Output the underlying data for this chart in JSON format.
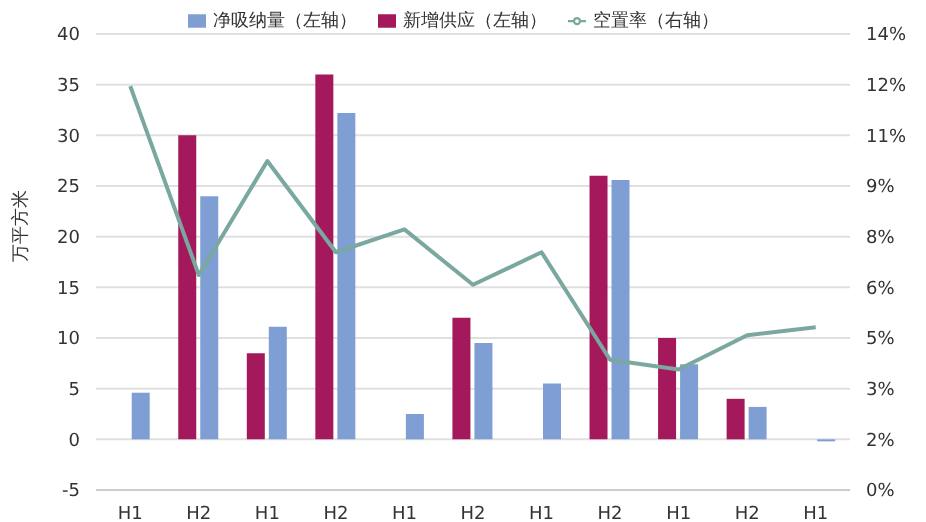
{
  "chart_data": {
    "type": "bar",
    "categories": [
      "H1",
      "H2",
      "H1",
      "H2",
      "H1",
      "H2",
      "H1",
      "H2",
      "H1",
      "H2",
      "H1"
    ],
    "ylabel": "万平方米",
    "ylim": [
      -5,
      40
    ],
    "yticks": [
      -5,
      0,
      5,
      10,
      15,
      20,
      25,
      30,
      35,
      40
    ],
    "y2lim": [
      0,
      14
    ],
    "y2ticks": [
      {
        "value": 0,
        "label": "0%"
      },
      {
        "value": 1.56,
        "label": "2%"
      },
      {
        "value": 3.11,
        "label": "3%"
      },
      {
        "value": 4.67,
        "label": "5%"
      },
      {
        "value": 6.22,
        "label": "6%"
      },
      {
        "value": 7.78,
        "label": "8%"
      },
      {
        "value": 9.33,
        "label": "9%"
      },
      {
        "value": 10.89,
        "label": "11%"
      },
      {
        "value": 12.44,
        "label": "12%"
      },
      {
        "value": 14,
        "label": "14%"
      }
    ],
    "grid": "y",
    "legend": "top",
    "series": [
      {
        "name": "新增供应（左轴）",
        "color": "#a3195b",
        "values": [
          0,
          30,
          8.5,
          36,
          0,
          12,
          0,
          26,
          10,
          4,
          0
        ]
      },
      {
        "name": "净吸纳量（左轴）",
        "color": "#7f9fd4",
        "values": [
          4.6,
          24,
          11.1,
          32.2,
          2.5,
          9.5,
          5.5,
          25.6,
          7.4,
          3.2,
          -0.2
        ]
      },
      {
        "name": "空置率（右轴）",
        "type": "line",
        "axis": "y2",
        "color": "#7aa8a0",
        "marker": "none",
        "values": [
          12.4,
          6.6,
          10.1,
          7.3,
          8.0,
          6.3,
          7.3,
          4.0,
          3.7,
          4.75,
          5.0
        ]
      }
    ]
  }
}
